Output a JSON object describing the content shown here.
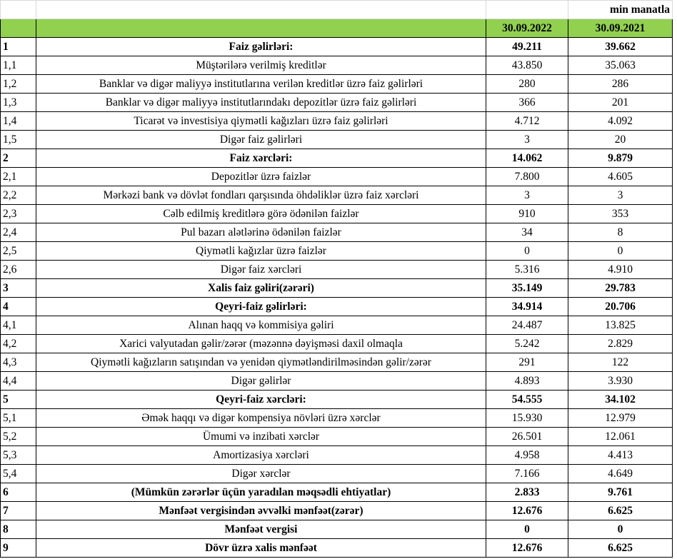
{
  "unit_label": "min manatla",
  "columns": {
    "code": "",
    "label": "",
    "col1": "30.09.2022",
    "col2": "30.09.2021"
  },
  "colors": {
    "header_bg": "#92d050"
  },
  "rows": [
    {
      "code": "1",
      "label": "Faiz gəlirləri:",
      "v1": "49.211",
      "v2": "39.662",
      "bold": true
    },
    {
      "code": "1,1",
      "label": "Müştərilərə verilmiş kreditlər",
      "v1": "43.850",
      "v2": "35.063"
    },
    {
      "code": "1,2",
      "label": "Banklar və digər maliyyə institutlarına verilən kreditlər üzrə faiz gəlirləri",
      "v1": "280",
      "v2": "286"
    },
    {
      "code": "1,3",
      "label": "Banklar və digər maliyyə institutlarındakı depozitlər üzrə faiz gəlirləri",
      "v1": "366",
      "v2": "201"
    },
    {
      "code": "1,4",
      "label": "Ticarət və investisiya qiymətli kağızları üzrə faiz gəlirləri",
      "v1": "4.712",
      "v2": "4.092"
    },
    {
      "code": "1,5",
      "label": "Digər faiz gəlirləri",
      "v1": "3",
      "v2": "20"
    },
    {
      "code": "2",
      "label": "Faiz xərcləri:",
      "v1": "14.062",
      "v2": "9.879",
      "bold": true
    },
    {
      "code": "2,1",
      "label": "Depozitlər üzrə faizlər",
      "v1": "7.800",
      "v2": "4.605"
    },
    {
      "code": "2,2",
      "label": "Mərkəzi bank və dövlət fondları qarşısında öhdəliklər üzrə faiz xərcləri",
      "v1": "3",
      "v2": "3"
    },
    {
      "code": "2,3",
      "label": "Cəlb edilmiş kreditlərə görə ödənilən faizlər",
      "v1": "910",
      "v2": "353"
    },
    {
      "code": "2,4",
      "label": "Pul bazarı alətlərinə ödənilən faizlər",
      "v1": "34",
      "v2": "8"
    },
    {
      "code": "2,5",
      "label": "Qiymətli kağızlar üzrə faizlər",
      "v1": "0",
      "v2": "0"
    },
    {
      "code": "2,6",
      "label": "Digər faiz xərcləri",
      "v1": "5.316",
      "v2": "4.910"
    },
    {
      "code": "3",
      "label": "Xalis faiz gəliri(zərəri)",
      "v1": "35.149",
      "v2": "29.783",
      "bold": true
    },
    {
      "code": "4",
      "label": "Qeyri-faiz gəlirləri:",
      "v1": "34.914",
      "v2": "20.706",
      "bold": true
    },
    {
      "code": "4,1",
      "label": "Alınan haqq və kommisiya gəliri",
      "v1": "24.487",
      "v2": "13.825"
    },
    {
      "code": "4,2",
      "label": "Xarici valyutadan gəlir/zərər (məzənnə dəyişməsi daxil olmaqla",
      "v1": "5.242",
      "v2": "2.829"
    },
    {
      "code": "4,3",
      "label": "Qiymətli kağızların satışından və yenidən qiymətləndirilməsindən gəlir/zərər",
      "v1": "291",
      "v2": "122"
    },
    {
      "code": "4,4",
      "label": "Digər gəlirlər",
      "v1": "4.893",
      "v2": "3.930"
    },
    {
      "code": "5",
      "label": "Qeyri-faiz xərcləri:",
      "v1": "54.555",
      "v2": "34.102",
      "bold": true
    },
    {
      "code": "5,1",
      "label": "Əmək haqqı və digər kompensiya növləri üzrə xərclər",
      "v1": "15.930",
      "v2": "12.979"
    },
    {
      "code": "5,2",
      "label": "Ümumi və inzibati xərclər",
      "v1": "26.501",
      "v2": "12.061"
    },
    {
      "code": "5,3",
      "label": "Amortizasiya xərcləri",
      "v1": "4.958",
      "v2": "4.413"
    },
    {
      "code": "5,4",
      "label": "Digər xərclər",
      "v1": "7.166",
      "v2": "4.649"
    },
    {
      "code": "6",
      "label": "(Mümkün zərərlər üçün yaradılan məqsədli ehtiyatlar)",
      "v1": "2.833",
      "v2": "9.761",
      "bold": true
    },
    {
      "code": "7",
      "label": "Mənfəət vergisindən əvvəlki mənfəət(zərər)",
      "v1": "12.676",
      "v2": "6.625",
      "bold": true
    },
    {
      "code": "8",
      "label": "Mənfəət vergisi",
      "v1": "0",
      "v2": "0",
      "bold": true
    },
    {
      "code": "9",
      "label": "Dövr üzrə xalis mənfəət",
      "v1": "12.676",
      "v2": "6.625",
      "bold": true
    }
  ]
}
